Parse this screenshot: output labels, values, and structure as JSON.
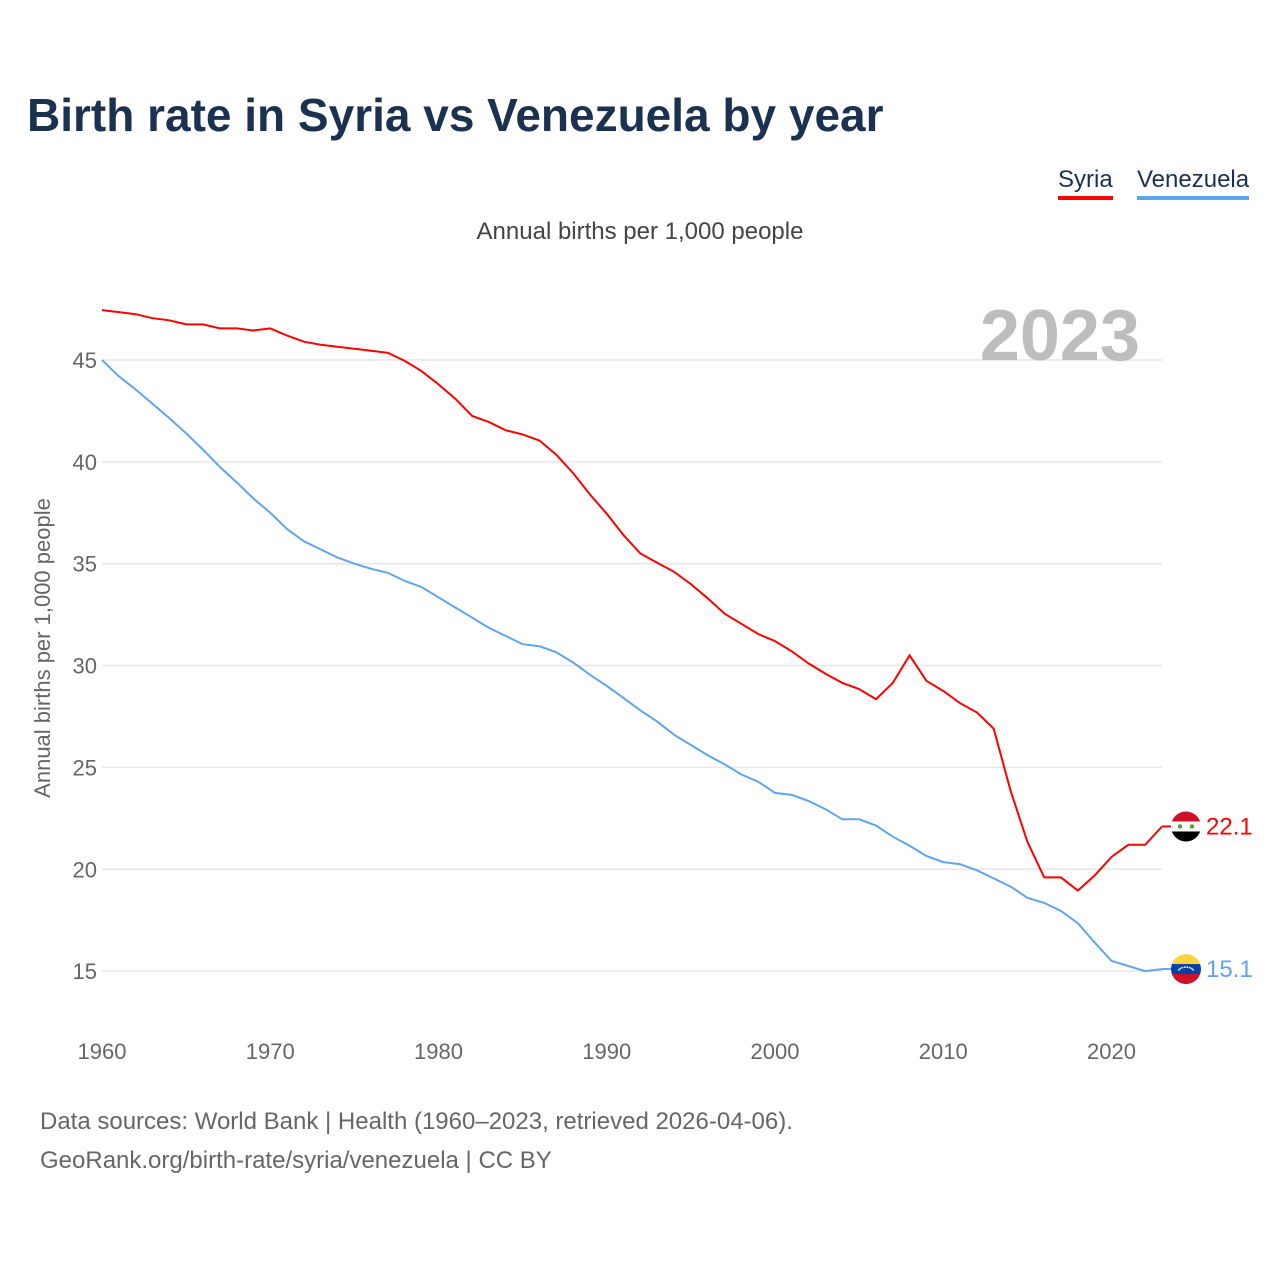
{
  "chart_data": {
    "type": "line",
    "title": "Birth rate in Syria vs Venezuela by year",
    "subtitle": "Annual births per 1,000 people",
    "ylabel": "Annual births per 1,000 people",
    "xlabel": "",
    "year_label": "2023",
    "xlim": [
      1960,
      2023
    ],
    "ylim": [
      12.5,
      48
    ],
    "yticks": [
      15,
      20,
      25,
      30,
      35,
      40,
      45
    ],
    "xticks": [
      1960,
      1970,
      1980,
      1990,
      2000,
      2010,
      2020
    ],
    "grid": true,
    "legend_position": "top-right",
    "x": [
      1960,
      1961,
      1962,
      1963,
      1964,
      1965,
      1966,
      1967,
      1968,
      1969,
      1970,
      1971,
      1972,
      1973,
      1974,
      1975,
      1976,
      1977,
      1978,
      1979,
      1980,
      1981,
      1982,
      1983,
      1984,
      1985,
      1986,
      1987,
      1988,
      1989,
      1990,
      1991,
      1992,
      1993,
      1994,
      1995,
      1996,
      1997,
      1998,
      1999,
      2000,
      2001,
      2002,
      2003,
      2004,
      2005,
      2006,
      2007,
      2008,
      2009,
      2010,
      2011,
      2012,
      2013,
      2014,
      2015,
      2016,
      2017,
      2018,
      2019,
      2020,
      2021,
      2022,
      2023
    ],
    "series": [
      {
        "name": "Syria",
        "color": "#ff0000",
        "end_label": "22.1",
        "flag": "syria-flag",
        "values": [
          47.45,
          47.35,
          47.25,
          47.05,
          46.95,
          46.75,
          46.75,
          46.55,
          46.55,
          46.45,
          46.55,
          46.2,
          45.9,
          45.75,
          45.65,
          45.55,
          45.45,
          45.35,
          44.95,
          44.45,
          43.8,
          43.1,
          42.25,
          41.95,
          41.55,
          41.35,
          41.05,
          40.35,
          39.45,
          38.4,
          37.45,
          36.4,
          35.5,
          35.05,
          34.6,
          34.0,
          33.3,
          32.55,
          32.05,
          31.55,
          31.2,
          30.7,
          30.1,
          29.6,
          29.15,
          28.85,
          28.35,
          29.15,
          30.5,
          29.25,
          28.75,
          28.15,
          27.7,
          26.9,
          23.85,
          21.35,
          19.6,
          19.6,
          18.95,
          19.7,
          20.6,
          21.2,
          21.2,
          22.1
        ]
      },
      {
        "name": "Venezuela",
        "color": "#5ea5ec",
        "end_label": "15.1",
        "flag": "venezuela-flag",
        "values": [
          45.0,
          44.2,
          43.55,
          42.85,
          42.15,
          41.4,
          40.6,
          39.75,
          39.0,
          38.2,
          37.5,
          36.7,
          36.1,
          35.7,
          35.3,
          35.0,
          34.75,
          34.55,
          34.15,
          33.85,
          33.35,
          32.85,
          32.35,
          31.85,
          31.45,
          31.05,
          30.95,
          30.65,
          30.15,
          29.55,
          29.0,
          28.4,
          27.8,
          27.25,
          26.6,
          26.1,
          25.6,
          25.15,
          24.65,
          24.3,
          23.75,
          23.65,
          23.35,
          22.95,
          22.45,
          22.45,
          22.15,
          21.6,
          21.15,
          20.65,
          20.35,
          20.25,
          19.95,
          19.55,
          19.15,
          18.6,
          18.35,
          17.95,
          17.35,
          16.4,
          15.5,
          15.25,
          15.0,
          15.1
        ]
      }
    ]
  },
  "footer": {
    "line1": "Data sources: World Bank | Health (1960–2023, retrieved 2026-04-06).",
    "line2": "GeoRank.org/birth-rate/syria/venezuela | CC BY"
  }
}
